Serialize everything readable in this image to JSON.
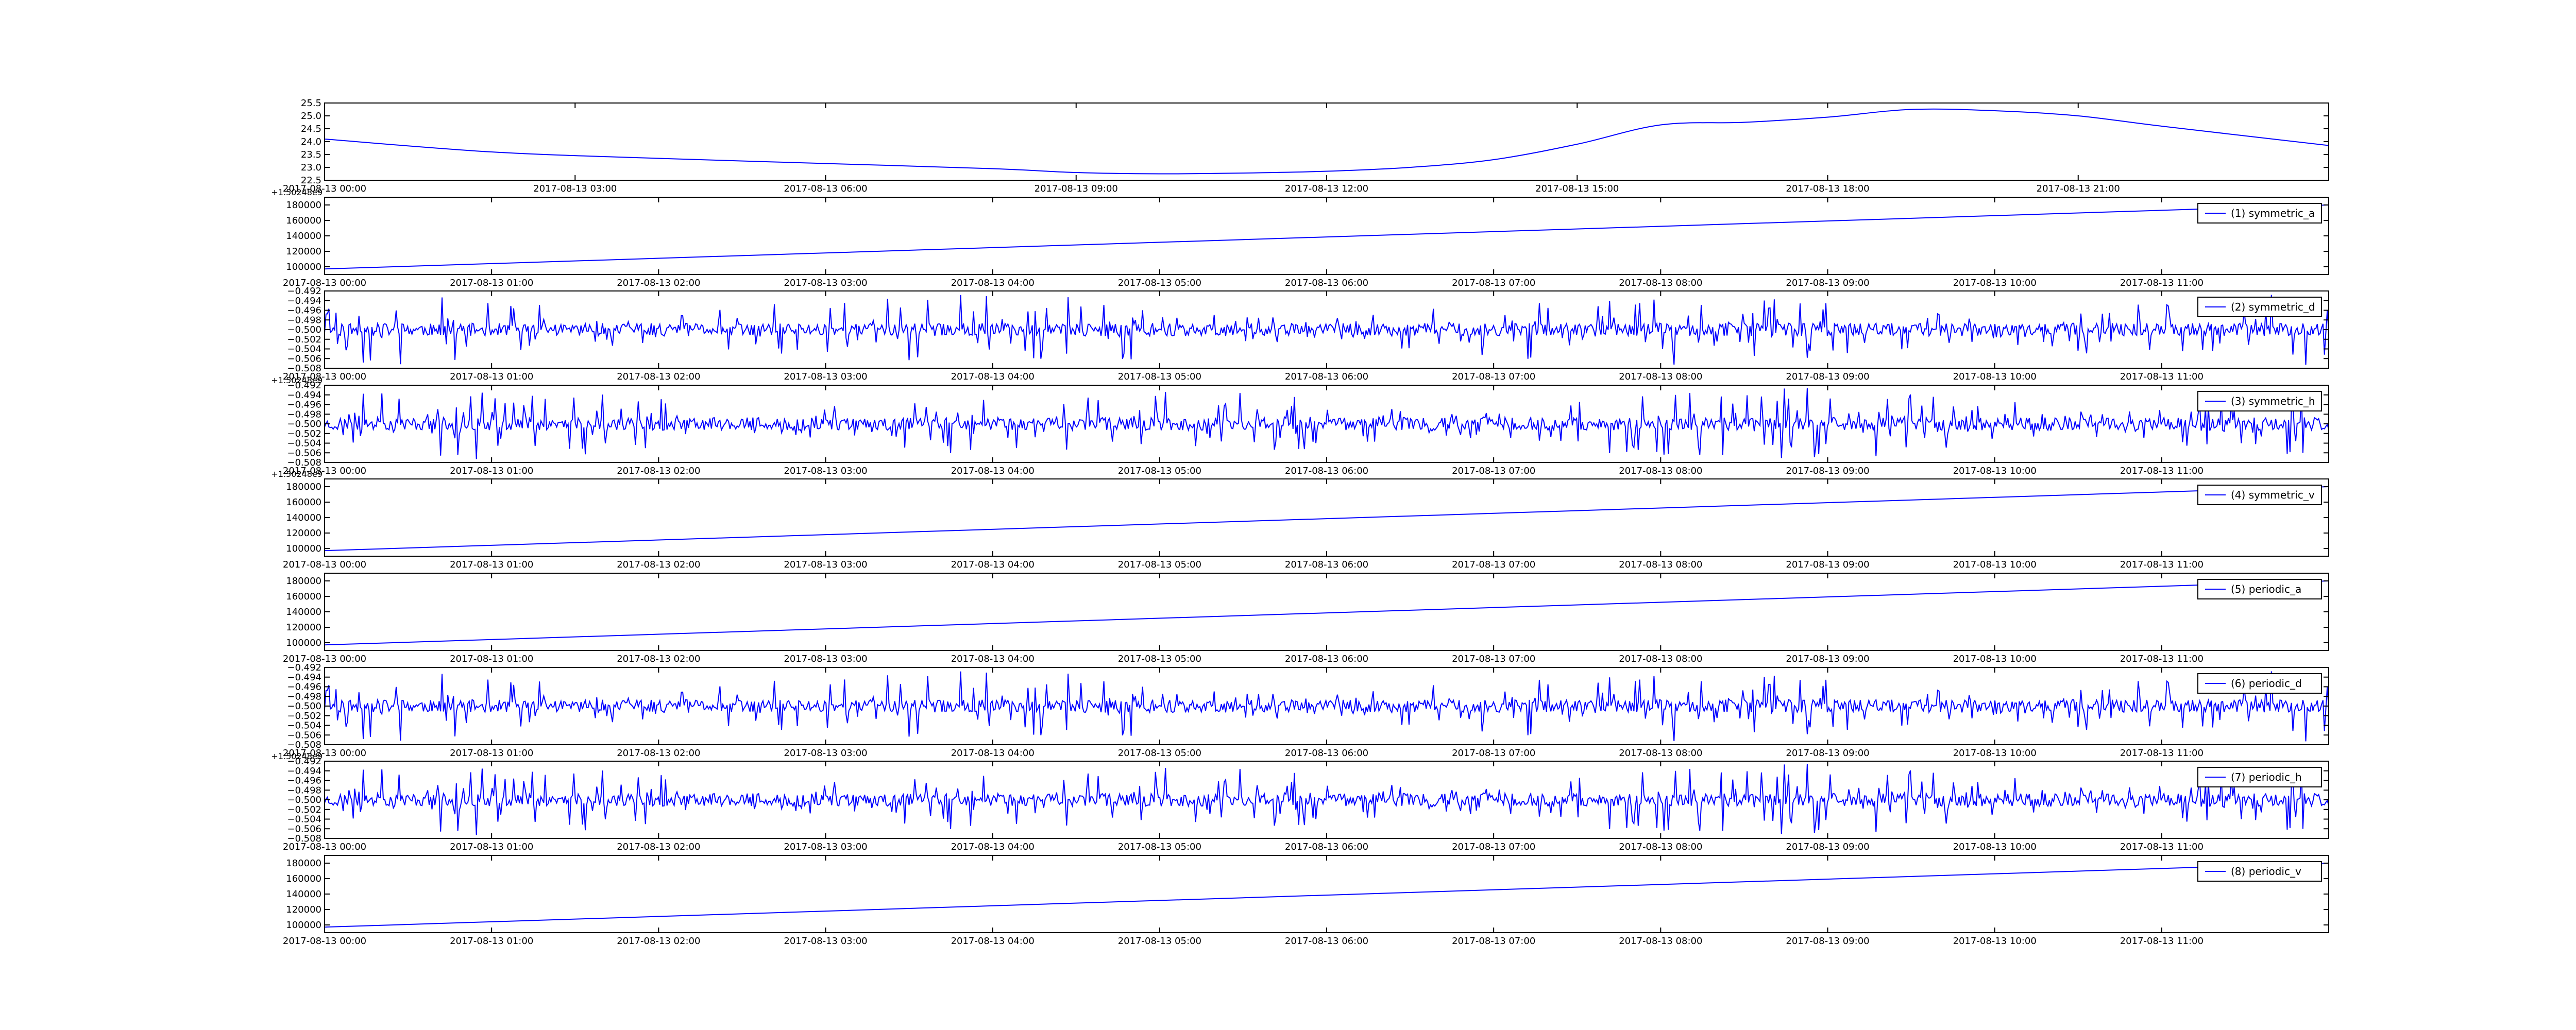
{
  "line_color": "#0000ff",
  "chart_data": [
    {
      "type": "line",
      "x_type": "datetime",
      "xlim": [
        "2017-08-13 00:00",
        "2017-08-14 00:00"
      ],
      "xticks": [
        "2017-08-13 00:00",
        "2017-08-13 03:00",
        "2017-08-13 06:00",
        "2017-08-13 09:00",
        "2017-08-13 12:00",
        "2017-08-13 15:00",
        "2017-08-13 18:00",
        "2017-08-13 21:00"
      ],
      "ylim": [
        22.5,
        25.5
      ],
      "yticks": [
        "22.5",
        "23.0",
        "23.5",
        "24.0",
        "24.5",
        "25.0",
        "25.5"
      ],
      "offset_text": "",
      "legend": null,
      "series": [
        {
          "kind": "curve",
          "x": [
            "2017-08-13 00:00",
            "2017-08-13 02:00",
            "2017-08-13 04:00",
            "2017-08-13 06:00",
            "2017-08-13 08:00",
            "2017-08-13 09:00",
            "2017-08-13 10:00",
            "2017-08-13 11:00",
            "2017-08-13 12:00",
            "2017-08-13 13:00",
            "2017-08-13 14:00",
            "2017-08-13 15:00",
            "2017-08-13 16:00",
            "2017-08-13 17:00",
            "2017-08-13 18:00",
            "2017-08-13 19:00",
            "2017-08-13 20:00",
            "2017-08-13 21:00",
            "2017-08-13 22:00",
            "2017-08-14 00:00"
          ],
          "y": [
            24.1,
            23.6,
            23.35,
            23.15,
            22.95,
            22.8,
            22.75,
            22.78,
            22.85,
            23.0,
            23.3,
            23.9,
            24.65,
            24.75,
            24.95,
            25.25,
            25.2,
            25.0,
            24.6,
            23.85
          ]
        }
      ]
    },
    {
      "type": "line",
      "x_type": "datetime",
      "xlim": [
        "2017-08-13 00:00",
        "2017-08-13 12:00"
      ],
      "xticks": [
        "2017-08-13 00:00",
        "2017-08-13 01:00",
        "2017-08-13 02:00",
        "2017-08-13 03:00",
        "2017-08-13 04:00",
        "2017-08-13 05:00",
        "2017-08-13 06:00",
        "2017-08-13 07:00",
        "2017-08-13 08:00",
        "2017-08-13 09:00",
        "2017-08-13 10:00",
        "2017-08-13 11:00"
      ],
      "ylim": [
        90000,
        190000
      ],
      "yticks": [
        "100000",
        "120000",
        "140000",
        "160000",
        "180000"
      ],
      "offset_text": "+1.50248e9",
      "legend": "(1) symmetric_a",
      "series": [
        {
          "kind": "linear",
          "name": "(1) symmetric_a",
          "x": [
            "2017-08-13 00:00",
            "2017-08-13 12:00"
          ],
          "y": [
            97200,
            180000
          ]
        }
      ]
    },
    {
      "type": "line",
      "x_type": "datetime",
      "xlim": [
        "2017-08-13 00:00",
        "2017-08-13 12:00"
      ],
      "xticks": [
        "2017-08-13 00:00",
        "2017-08-13 01:00",
        "2017-08-13 02:00",
        "2017-08-13 03:00",
        "2017-08-13 04:00",
        "2017-08-13 05:00",
        "2017-08-13 06:00",
        "2017-08-13 07:00",
        "2017-08-13 08:00",
        "2017-08-13 09:00",
        "2017-08-13 10:00",
        "2017-08-13 11:00"
      ],
      "ylim": [
        -0.508,
        -0.492
      ],
      "yticks": [
        "−0.492",
        "−0.494",
        "−0.496",
        "−0.498",
        "−0.500",
        "−0.502",
        "−0.504",
        "−0.506",
        "−0.508"
      ],
      "offset_text": "",
      "legend": "(2) symmetric_d",
      "series": [
        {
          "kind": "noise",
          "name": "(2) symmetric_d",
          "center": -0.5,
          "amplitude": 0.0075,
          "seed": 11
        }
      ]
    },
    {
      "type": "line",
      "x_type": "datetime",
      "xlim": [
        "2017-08-13 00:00",
        "2017-08-13 12:00"
      ],
      "xticks": [
        "2017-08-13 00:00",
        "2017-08-13 01:00",
        "2017-08-13 02:00",
        "2017-08-13 03:00",
        "2017-08-13 04:00",
        "2017-08-13 05:00",
        "2017-08-13 06:00",
        "2017-08-13 07:00",
        "2017-08-13 08:00",
        "2017-08-13 09:00",
        "2017-08-13 10:00",
        "2017-08-13 11:00"
      ],
      "ylim": [
        -0.508,
        -0.492
      ],
      "yticks": [
        "−0.492",
        "−0.494",
        "−0.496",
        "−0.498",
        "−0.500",
        "−0.502",
        "−0.504",
        "−0.506",
        "−0.508"
      ],
      "offset_text": "+1.50248e9",
      "legend": "(3) symmetric_h",
      "series": [
        {
          "kind": "noise",
          "name": "(3) symmetric_h",
          "center": -0.5,
          "amplitude": 0.0075,
          "seed": 23
        }
      ]
    },
    {
      "type": "line",
      "x_type": "datetime",
      "xlim": [
        "2017-08-13 00:00",
        "2017-08-13 12:00"
      ],
      "xticks": [
        "2017-08-13 00:00",
        "2017-08-13 01:00",
        "2017-08-13 02:00",
        "2017-08-13 03:00",
        "2017-08-13 04:00",
        "2017-08-13 05:00",
        "2017-08-13 06:00",
        "2017-08-13 07:00",
        "2017-08-13 08:00",
        "2017-08-13 09:00",
        "2017-08-13 10:00",
        "2017-08-13 11:00"
      ],
      "ylim": [
        90000,
        190000
      ],
      "yticks": [
        "100000",
        "120000",
        "140000",
        "160000",
        "180000"
      ],
      "offset_text": "+1.50248e9",
      "legend": "(4) symmetric_v",
      "series": [
        {
          "kind": "linear",
          "name": "(4) symmetric_v",
          "x": [
            "2017-08-13 00:00",
            "2017-08-13 12:00"
          ],
          "y": [
            97200,
            180000
          ]
        }
      ]
    },
    {
      "type": "line",
      "x_type": "datetime",
      "xlim": [
        "2017-08-13 00:00",
        "2017-08-13 12:00"
      ],
      "xticks": [
        "2017-08-13 00:00",
        "2017-08-13 01:00",
        "2017-08-13 02:00",
        "2017-08-13 03:00",
        "2017-08-13 04:00",
        "2017-08-13 05:00",
        "2017-08-13 06:00",
        "2017-08-13 07:00",
        "2017-08-13 08:00",
        "2017-08-13 09:00",
        "2017-08-13 10:00",
        "2017-08-13 11:00"
      ],
      "ylim": [
        90000,
        190000
      ],
      "yticks": [
        "100000",
        "120000",
        "140000",
        "160000",
        "180000"
      ],
      "offset_text": "",
      "legend": "(5) periodic_a",
      "series": [
        {
          "kind": "linear",
          "name": "(5) periodic_a",
          "x": [
            "2017-08-13 00:00",
            "2017-08-13 12:00"
          ],
          "y": [
            97200,
            180000
          ]
        }
      ]
    },
    {
      "type": "line",
      "x_type": "datetime",
      "xlim": [
        "2017-08-13 00:00",
        "2017-08-13 12:00"
      ],
      "xticks": [
        "2017-08-13 00:00",
        "2017-08-13 01:00",
        "2017-08-13 02:00",
        "2017-08-13 03:00",
        "2017-08-13 04:00",
        "2017-08-13 05:00",
        "2017-08-13 06:00",
        "2017-08-13 07:00",
        "2017-08-13 08:00",
        "2017-08-13 09:00",
        "2017-08-13 10:00",
        "2017-08-13 11:00"
      ],
      "ylim": [
        -0.508,
        -0.492
      ],
      "yticks": [
        "−0.492",
        "−0.494",
        "−0.496",
        "−0.498",
        "−0.500",
        "−0.502",
        "−0.504",
        "−0.506",
        "−0.508"
      ],
      "offset_text": "",
      "legend": "(6) periodic_d",
      "series": [
        {
          "kind": "noise",
          "name": "(6) periodic_d",
          "center": -0.5,
          "amplitude": 0.0075,
          "seed": 11
        }
      ]
    },
    {
      "type": "line",
      "x_type": "datetime",
      "xlim": [
        "2017-08-13 00:00",
        "2017-08-13 12:00"
      ],
      "xticks": [
        "2017-08-13 00:00",
        "2017-08-13 01:00",
        "2017-08-13 02:00",
        "2017-08-13 03:00",
        "2017-08-13 04:00",
        "2017-08-13 05:00",
        "2017-08-13 06:00",
        "2017-08-13 07:00",
        "2017-08-13 08:00",
        "2017-08-13 09:00",
        "2017-08-13 10:00",
        "2017-08-13 11:00"
      ],
      "ylim": [
        -0.508,
        -0.492
      ],
      "yticks": [
        "−0.492",
        "−0.494",
        "−0.496",
        "−0.498",
        "−0.500",
        "−0.502",
        "−0.504",
        "−0.506",
        "−0.508"
      ],
      "offset_text": "+1.50248e9",
      "legend": "(7) periodic_h",
      "series": [
        {
          "kind": "noise",
          "name": "(7) periodic_h",
          "center": -0.5,
          "amplitude": 0.0075,
          "seed": 23
        }
      ]
    },
    {
      "type": "line",
      "x_type": "datetime",
      "xlim": [
        "2017-08-13 00:00",
        "2017-08-13 12:00"
      ],
      "xticks": [
        "2017-08-13 00:00",
        "2017-08-13 01:00",
        "2017-08-13 02:00",
        "2017-08-13 03:00",
        "2017-08-13 04:00",
        "2017-08-13 05:00",
        "2017-08-13 06:00",
        "2017-08-13 07:00",
        "2017-08-13 08:00",
        "2017-08-13 09:00",
        "2017-08-13 10:00",
        "2017-08-13 11:00"
      ],
      "ylim": [
        90000,
        190000
      ],
      "yticks": [
        "100000",
        "120000",
        "140000",
        "160000",
        "180000"
      ],
      "offset_text": "",
      "legend": "(8) periodic_v",
      "series": [
        {
          "kind": "linear",
          "name": "(8) periodic_v",
          "x": [
            "2017-08-13 00:00",
            "2017-08-13 12:00"
          ],
          "y": [
            97200,
            180000
          ]
        }
      ]
    }
  ]
}
